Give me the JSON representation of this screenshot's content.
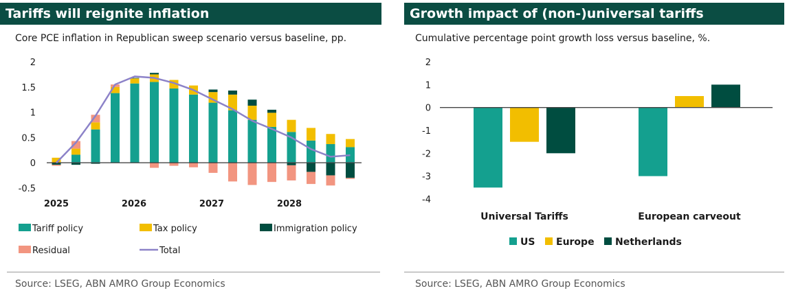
{
  "left": {
    "title": "Tariffs will reignite inflation",
    "subtitle": "Core PCE inflation in Republican sweep scenario versus baseline, pp.",
    "source": "Source:  LSEG, ABN AMRO Group Economics"
  },
  "right": {
    "title": "Growth impact of (non-)universal tariffs",
    "subtitle": "Cumulative percentage point growth loss versus baseline, %.",
    "source": "Source: LSEG, ABN AMRO Group Economics"
  },
  "chart_data": [
    {
      "type": "bar",
      "stacked": true,
      "ylim": [
        -0.5,
        2
      ],
      "yticks": [
        "2",
        "1.5",
        "1",
        "0.5",
        "0",
        "-0.5"
      ],
      "xticks": [
        "2025",
        "2026",
        "2027",
        "2028"
      ],
      "x": [
        "2025Q1",
        "2025Q2",
        "2025Q3",
        "2025Q4",
        "2026Q1",
        "2026Q2",
        "2026Q3",
        "2026Q4",
        "2027Q1",
        "2027Q2",
        "2027Q3",
        "2027Q4",
        "2028Q1",
        "2028Q2",
        "2028Q3",
        "2028Q4"
      ],
      "series": [
        {
          "name": "Tariff policy",
          "color": "#14a08f",
          "values": [
            0.0,
            0.16,
            0.66,
            1.38,
            1.57,
            1.6,
            1.47,
            1.35,
            1.19,
            1.04,
            0.85,
            0.71,
            0.61,
            0.44,
            0.37,
            0.31
          ]
        },
        {
          "name": "Tax policy",
          "color": "#f2be00",
          "values": [
            0.1,
            0.12,
            0.14,
            0.12,
            0.1,
            0.15,
            0.17,
            0.18,
            0.21,
            0.31,
            0.28,
            0.28,
            0.24,
            0.25,
            0.2,
            0.16
          ]
        },
        {
          "name": "Immigration policy",
          "color": "#004d40",
          "values": [
            -0.04,
            -0.04,
            -0.02,
            0.0,
            0.01,
            0.03,
            0.0,
            0.0,
            0.05,
            0.08,
            0.12,
            0.06,
            -0.05,
            -0.18,
            -0.25,
            -0.3
          ]
        },
        {
          "name": "Residual",
          "color": "#f29580",
          "values": [
            -0.02,
            0.15,
            0.15,
            0.05,
            0.0,
            -0.1,
            -0.06,
            -0.09,
            -0.2,
            -0.37,
            -0.44,
            -0.38,
            -0.3,
            -0.24,
            -0.2,
            -0.02
          ]
        }
      ],
      "line": {
        "name": "Total",
        "color": "#8c82c8",
        "values": [
          0.0,
          0.4,
          0.93,
          1.55,
          1.71,
          1.68,
          1.58,
          1.44,
          1.25,
          1.06,
          0.83,
          0.67,
          0.5,
          0.27,
          0.12,
          0.15
        ]
      }
    },
    {
      "type": "bar",
      "ylim": [
        -4,
        2
      ],
      "yticks": [
        "2",
        "1",
        "0",
        "-1",
        "-2",
        "-3",
        "-4"
      ],
      "categories": [
        "Universal Tariffs",
        "European carveout"
      ],
      "series": [
        {
          "name": "US",
          "color": "#14a08f",
          "values": [
            -3.5,
            -3.0
          ]
        },
        {
          "name": "Europe",
          "color": "#f2be00",
          "values": [
            -1.5,
            0.5
          ]
        },
        {
          "name": "Netherlands",
          "color": "#004d40",
          "values": [
            -2.0,
            1.0
          ]
        }
      ]
    }
  ]
}
